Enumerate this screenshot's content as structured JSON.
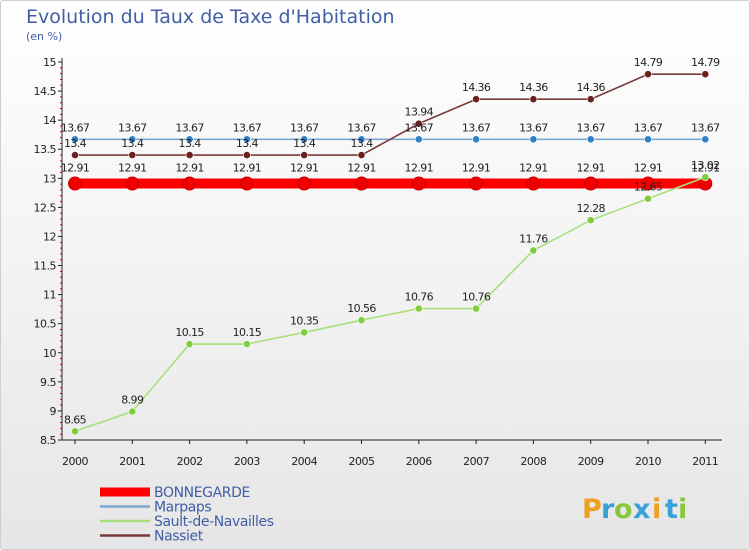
{
  "chart_data": {
    "type": "line",
    "title": "Evolution du Taux de Taxe d'Habitation",
    "subtitle": "(en %)",
    "categories": [
      "2000",
      "2001",
      "2002",
      "2003",
      "2004",
      "2005",
      "2006",
      "2007",
      "2008",
      "2009",
      "2010",
      "2011"
    ],
    "y_ticks": [
      "8.5",
      "9",
      "9.5",
      "10",
      "10.5",
      "11",
      "11.5",
      "12",
      "12.5",
      "13",
      "13.5",
      "14",
      "14.5",
      "15"
    ],
    "ylim": [
      8.5,
      15
    ],
    "grid": false,
    "legend_position": "bottom-left",
    "series": [
      {
        "name": "BONNEGARDE",
        "color": "#ff0000",
        "marker": "#ee0000",
        "values": [
          12.91,
          12.91,
          12.91,
          12.91,
          12.91,
          12.91,
          12.91,
          12.91,
          12.91,
          12.91,
          12.91,
          12.91
        ],
        "labels": [
          "12.91",
          "12.91",
          "12.91",
          "12.91",
          "12.91",
          "12.91",
          "12.91",
          "12.91",
          "12.91",
          "12.91",
          "12.91",
          "12.91"
        ]
      },
      {
        "name": "Marpaps",
        "color": "#7ba7d1",
        "marker": "#2f80c8",
        "values": [
          13.67,
          13.67,
          13.67,
          13.67,
          13.67,
          13.67,
          13.67,
          13.67,
          13.67,
          13.67,
          13.67,
          13.67
        ],
        "labels": [
          "13.67",
          "13.67",
          "13.67",
          "13.67",
          "13.67",
          "13.67",
          "13.67",
          "13.67",
          "13.67",
          "13.67",
          "13.67",
          "13.67"
        ]
      },
      {
        "name": "Sault-de-Navailles",
        "color": "#a9e07a",
        "marker": "#7fcc3f",
        "values": [
          8.65,
          8.99,
          10.15,
          10.15,
          10.35,
          10.56,
          10.76,
          10.76,
          11.76,
          12.28,
          12.65,
          13.02
        ],
        "labels": [
          "8.65",
          "8.99",
          "10.15",
          "10.15",
          "10.35",
          "10.56",
          "10.76",
          "10.76",
          "11.76",
          "12.28",
          "12.65",
          "13.02"
        ]
      },
      {
        "name": "Nassiet",
        "color": "#7a3a3a",
        "marker": "#6b1f1f",
        "values": [
          13.4,
          13.4,
          13.4,
          13.4,
          13.4,
          13.4,
          13.94,
          14.36,
          14.36,
          14.36,
          14.79,
          14.79
        ],
        "labels": [
          "13.4",
          "13.4",
          "13.4",
          "13.4",
          "13.4",
          "13.4",
          "13.94",
          "14.36",
          "14.36",
          "14.36",
          "14.79",
          "14.79"
        ]
      }
    ]
  },
  "brand": {
    "letters": [
      "P",
      "r",
      "o",
      "x",
      "i",
      "t",
      "i"
    ],
    "colors": [
      "#f0a020",
      "#3aa0d8",
      "#8cc63f",
      "#3aa0d8",
      "#f0a020",
      "#3aa0d8",
      "#8cc63f"
    ]
  }
}
